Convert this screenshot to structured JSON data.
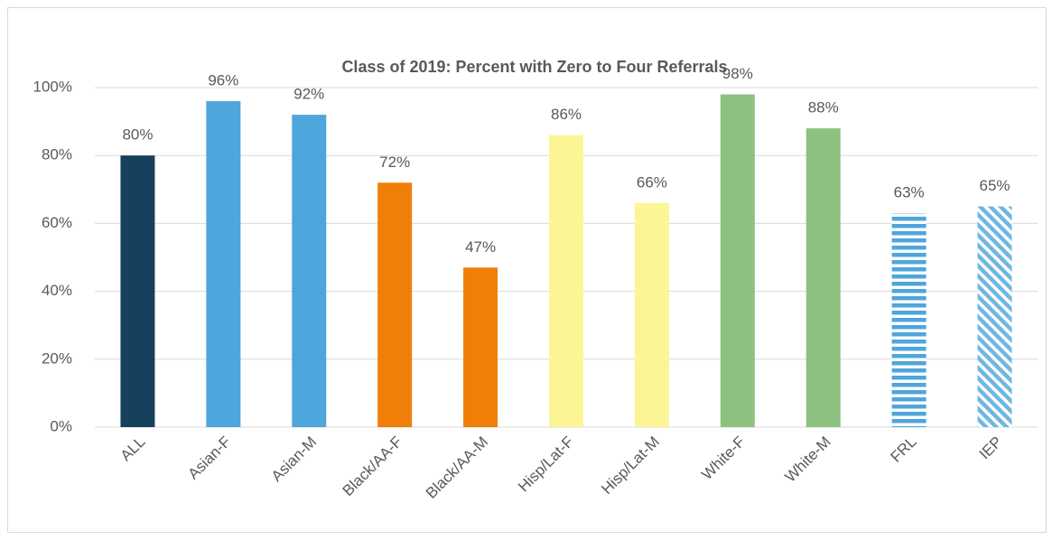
{
  "chart_data": {
    "type": "bar",
    "title": "Class of 2019: Percent with Zero to Four Referrals",
    "categories": [
      "ALL",
      "Asian-F",
      "Asian-M",
      "Black/AA-F",
      "Black/AA-M",
      "Hisp/Lat-F",
      "Hisp/Lat-M",
      "White-F",
      "White-M",
      "FRL",
      "IEP"
    ],
    "values": [
      80,
      96,
      92,
      72,
      47,
      86,
      66,
      98,
      88,
      63,
      65
    ],
    "value_labels": [
      "80%",
      "96%",
      "92%",
      "72%",
      "47%",
      "86%",
      "66%",
      "98%",
      "88%",
      "63%",
      "65%"
    ],
    "colors": [
      "#17405c",
      "#4ea6dc",
      "#4ea6dc",
      "#f07f09",
      "#f07f09",
      "#fcf596",
      "#fcf596",
      "#8dc180",
      "#8dc180",
      "#4ea6dc",
      "#6fb7e3"
    ],
    "fill_styles": [
      "solid",
      "solid",
      "solid",
      "solid",
      "solid",
      "solid",
      "solid",
      "solid",
      "solid",
      "horizontal-stripes",
      "diagonal-stripes"
    ],
    "ylim": [
      0,
      100
    ],
    "yticks": [
      {
        "value": 0,
        "label": "0%"
      },
      {
        "value": 20,
        "label": "20%"
      },
      {
        "value": 40,
        "label": "40%"
      },
      {
        "value": 60,
        "label": "60%"
      },
      {
        "value": 80,
        "label": "80%"
      },
      {
        "value": 100,
        "label": "100%"
      }
    ],
    "grid": true
  }
}
